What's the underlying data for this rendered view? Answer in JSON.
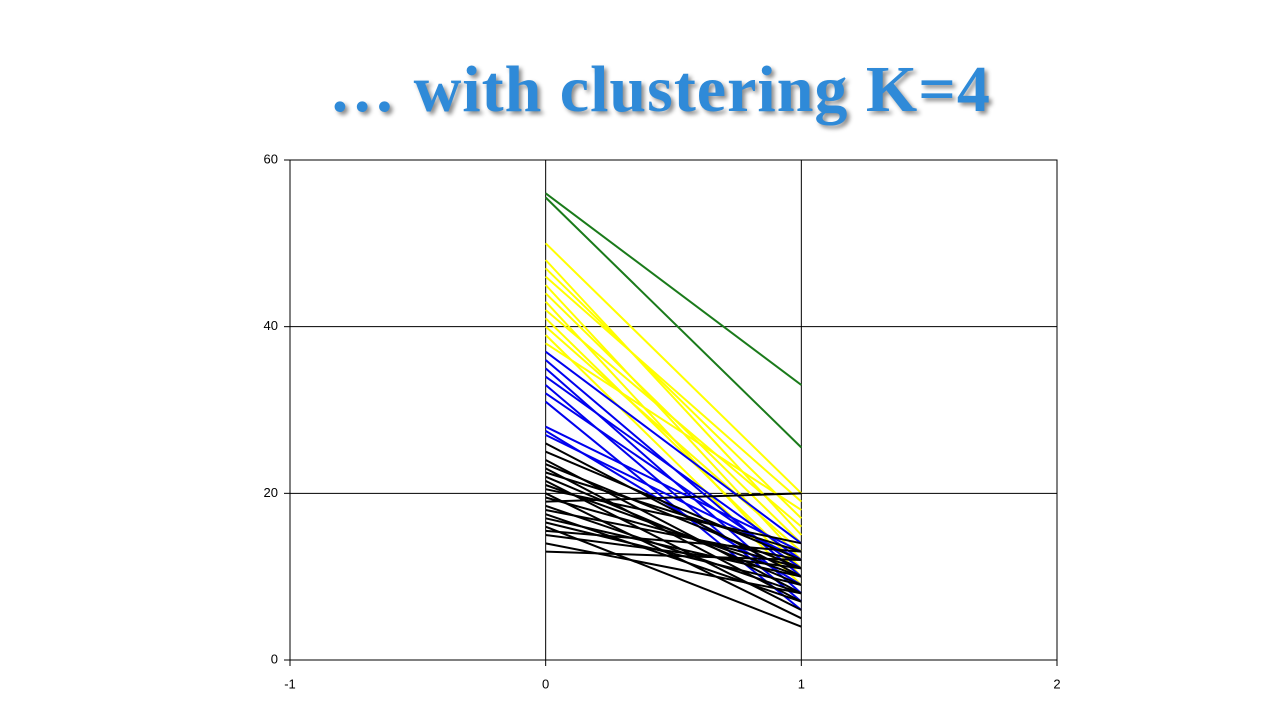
{
  "chart_data": {
    "type": "line",
    "title": "… with clustering K=4",
    "x": [
      0,
      1
    ],
    "xlim": [
      -1,
      2
    ],
    "xticks": [
      -1,
      0,
      1,
      2
    ],
    "ylim": [
      0,
      60
    ],
    "yticks": [
      0,
      20,
      40,
      60
    ],
    "grid": true,
    "series": [
      {
        "color": "#1a7a1a",
        "values": [
          56,
          33
        ]
      },
      {
        "color": "#1a7a1a",
        "values": [
          55.5,
          25.5
        ]
      },
      {
        "color": "#ffff00",
        "values": [
          50,
          20
        ]
      },
      {
        "color": "#ffff00",
        "values": [
          48,
          15
        ]
      },
      {
        "color": "#ffff00",
        "values": [
          47,
          17
        ]
      },
      {
        "color": "#ffff00",
        "values": [
          46,
          19
        ]
      },
      {
        "color": "#ffff00",
        "values": [
          45,
          12
        ]
      },
      {
        "color": "#ffff00",
        "values": [
          44,
          14
        ]
      },
      {
        "color": "#ffff00",
        "values": [
          43,
          10
        ]
      },
      {
        "color": "#ffff00",
        "values": [
          42,
          16
        ]
      },
      {
        "color": "#ffff00",
        "values": [
          41,
          11
        ]
      },
      {
        "color": "#ffff00",
        "values": [
          40,
          13
        ]
      },
      {
        "color": "#ffff00",
        "values": [
          39,
          9
        ]
      },
      {
        "color": "#ffff00",
        "values": [
          38,
          18
        ]
      },
      {
        "color": "#0000ee",
        "values": [
          37,
          14
        ]
      },
      {
        "color": "#0000ee",
        "values": [
          36,
          10
        ]
      },
      {
        "color": "#0000ee",
        "values": [
          35,
          8
        ]
      },
      {
        "color": "#0000ee",
        "values": [
          34,
          12
        ]
      },
      {
        "color": "#0000ee",
        "values": [
          33,
          7
        ]
      },
      {
        "color": "#0000ee",
        "values": [
          32,
          11
        ]
      },
      {
        "color": "#0000ee",
        "values": [
          31,
          6
        ]
      },
      {
        "color": "#0000ee",
        "values": [
          28,
          13
        ]
      },
      {
        "color": "#0000ee",
        "values": [
          27.5,
          9
        ]
      },
      {
        "color": "#0000ee",
        "values": [
          27,
          12
        ]
      },
      {
        "color": "#000000",
        "values": [
          19,
          20
        ]
      },
      {
        "color": "#000000",
        "values": [
          26,
          10
        ]
      },
      {
        "color": "#000000",
        "values": [
          25,
          12
        ]
      },
      {
        "color": "#000000",
        "values": [
          24,
          8
        ]
      },
      {
        "color": "#000000",
        "values": [
          23.5,
          11
        ]
      },
      {
        "color": "#000000",
        "values": [
          23,
          7
        ]
      },
      {
        "color": "#000000",
        "values": [
          22.5,
          13
        ]
      },
      {
        "color": "#000000",
        "values": [
          22,
          9
        ]
      },
      {
        "color": "#000000",
        "values": [
          21.5,
          6
        ]
      },
      {
        "color": "#000000",
        "values": [
          21,
          10
        ]
      },
      {
        "color": "#000000",
        "values": [
          20.5,
          14
        ]
      },
      {
        "color": "#000000",
        "values": [
          20,
          5
        ]
      },
      {
        "color": "#000000",
        "values": [
          19.5,
          11
        ]
      },
      {
        "color": "#000000",
        "values": [
          18.5,
          8
        ]
      },
      {
        "color": "#000000",
        "values": [
          18,
          12
        ]
      },
      {
        "color": "#000000",
        "values": [
          17.5,
          7
        ]
      },
      {
        "color": "#000000",
        "values": [
          17,
          10
        ]
      },
      {
        "color": "#000000",
        "values": [
          16.5,
          9
        ]
      },
      {
        "color": "#000000",
        "values": [
          16,
          4
        ]
      },
      {
        "color": "#000000",
        "values": [
          15.5,
          13
        ]
      },
      {
        "color": "#000000",
        "values": [
          15,
          11
        ]
      },
      {
        "color": "#000000",
        "values": [
          14,
          8
        ]
      },
      {
        "color": "#000000",
        "values": [
          13,
          12
        ]
      }
    ]
  }
}
